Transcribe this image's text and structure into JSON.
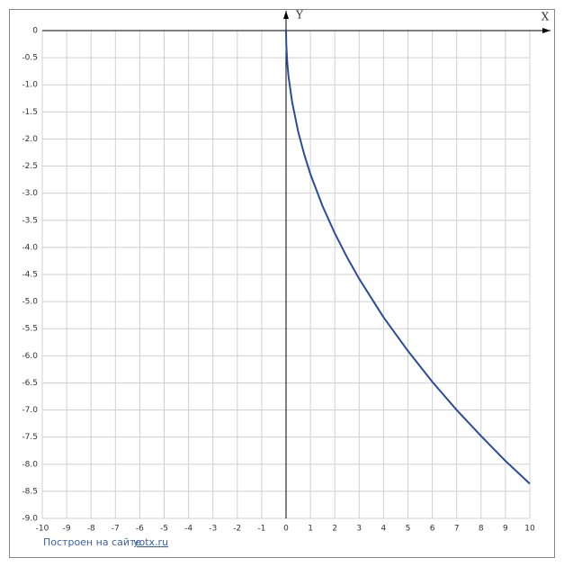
{
  "chart_data": {
    "type": "line",
    "x": [
      0,
      0.01,
      0.05,
      0.1,
      0.25,
      0.5,
      0.75,
      1,
      1.5,
      2,
      2.5,
      3,
      4,
      5,
      6,
      7,
      8,
      9,
      10
    ],
    "values": [
      0,
      -0.26,
      -0.59,
      -0.84,
      -1.32,
      -1.87,
      -2.29,
      -2.65,
      -3.24,
      -3.74,
      -4.18,
      -4.58,
      -5.29,
      -5.91,
      -6.48,
      -7.0,
      -7.48,
      -7.94,
      -8.36
    ],
    "color": "#2b4c9b",
    "xlabel": "X",
    "ylabel": "Y",
    "xlim": [
      -10,
      10
    ],
    "ylim": [
      -9,
      0
    ],
    "xticks": [
      -10,
      -9,
      -8,
      -7,
      -6,
      -5,
      -4,
      -3,
      -2,
      -1,
      0,
      1,
      2,
      3,
      4,
      5,
      6,
      7,
      8,
      9,
      10
    ],
    "yticks": [
      0,
      -0.5,
      {
        "value": -1,
        "label": "-1.0"
      },
      -1.5,
      {
        "value": -2,
        "label": "-2.0"
      },
      -2.5,
      {
        "value": -3,
        "label": "-3.0"
      },
      -3.5,
      {
        "value": -4,
        "label": "-4.0"
      },
      -4.5,
      {
        "value": -5,
        "label": "-5.0"
      },
      -5.5,
      {
        "value": -6,
        "label": "-6.0"
      },
      -6.5,
      {
        "value": -7,
        "label": "-7.0"
      },
      -7.5,
      {
        "value": -8,
        "label": "-8.0"
      },
      -8.5,
      {
        "value": -9,
        "label": "-9.0"
      }
    ],
    "grid": true,
    "credit": "Построен на сайте",
    "credit_link": "yotx.ru"
  }
}
